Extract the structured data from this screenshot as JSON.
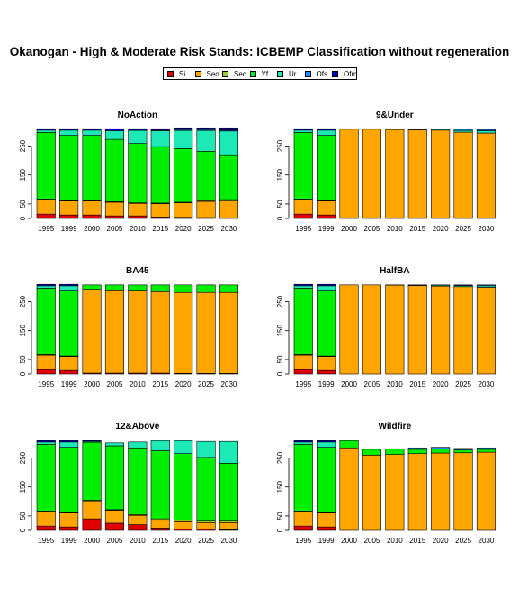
{
  "title": "Okanogan  - High & Moderate Risk Stands: ICBEMP Classification without regeneration",
  "legend": [
    {
      "name": "Si",
      "color": "#e00000"
    },
    {
      "name": "Seo",
      "color": "#ffa500"
    },
    {
      "name": "Sec",
      "color": "#9acd32"
    },
    {
      "name": "Yf",
      "color": "#00ee00"
    },
    {
      "name": "Ur",
      "color": "#1de9b6"
    },
    {
      "name": "Ofs",
      "color": "#1e90ff"
    },
    {
      "name": "Ofm",
      "color": "#0000cc"
    }
  ],
  "chart_data": [
    {
      "type": "bar",
      "stacked": true,
      "title": "NoAction",
      "categories": [
        "1995",
        "1999",
        "2000",
        "2005",
        "2010",
        "2015",
        "2020",
        "2025",
        "2030"
      ],
      "yticks": [
        0,
        50,
        150,
        250
      ],
      "ylim": [
        0,
        320
      ],
      "series": [
        {
          "name": "Si",
          "values": [
            15,
            12,
            12,
            9,
            9,
            5,
            4,
            3,
            0
          ]
        },
        {
          "name": "Seo",
          "values": [
            50,
            48,
            48,
            47,
            43,
            46,
            50,
            56,
            60
          ]
        },
        {
          "name": "Sec",
          "values": [
            2,
            2,
            2,
            2,
            2,
            2,
            2,
            3,
            5
          ]
        },
        {
          "name": "Yf",
          "values": [
            230,
            225,
            225,
            215,
            205,
            195,
            185,
            170,
            155
          ]
        },
        {
          "name": "Ur",
          "values": [
            8,
            18,
            18,
            30,
            45,
            55,
            63,
            72,
            82
          ]
        },
        {
          "name": "Ofs",
          "values": [
            0,
            0,
            0,
            0,
            1,
            2,
            3,
            3,
            3
          ]
        },
        {
          "name": "Ofm",
          "values": [
            5,
            5,
            5,
            7,
            5,
            5,
            6,
            6,
            8
          ]
        }
      ]
    },
    {
      "type": "bar",
      "stacked": true,
      "title": "9&Under",
      "categories": [
        "1995",
        "1999",
        "2000",
        "2005",
        "2010",
        "2015",
        "2020",
        "2025",
        "2030"
      ],
      "yticks": [
        0,
        50,
        150,
        250
      ],
      "ylim": [
        0,
        320
      ],
      "series": [
        {
          "name": "Si",
          "values": [
            15,
            12,
            0,
            0,
            0,
            0,
            0,
            0,
            0
          ]
        },
        {
          "name": "Seo",
          "values": [
            50,
            48,
            308,
            308,
            307,
            306,
            305,
            298,
            295
          ]
        },
        {
          "name": "Sec",
          "values": [
            2,
            2,
            0,
            0,
            0,
            0,
            0,
            0,
            0
          ]
        },
        {
          "name": "Yf",
          "values": [
            230,
            225,
            0,
            0,
            0,
            0,
            0,
            0,
            0
          ]
        },
        {
          "name": "Ur",
          "values": [
            8,
            18,
            0,
            0,
            1,
            2,
            3,
            6,
            8
          ]
        },
        {
          "name": "Ofs",
          "values": [
            0,
            0,
            0,
            0,
            0,
            0,
            0,
            4,
            4
          ]
        },
        {
          "name": "Ofm",
          "values": [
            5,
            5,
            0,
            0,
            0,
            0,
            0,
            0,
            0
          ]
        }
      ]
    },
    {
      "type": "bar",
      "stacked": true,
      "title": "BA45",
      "categories": [
        "1995",
        "1999",
        "2000",
        "2005",
        "2010",
        "2015",
        "2020",
        "2025",
        "2030"
      ],
      "yticks": [
        0,
        50,
        150,
        250
      ],
      "ylim": [
        0,
        320
      ],
      "series": [
        {
          "name": "Si",
          "values": [
            15,
            12,
            3,
            3,
            3,
            3,
            2,
            2,
            2
          ]
        },
        {
          "name": "Seo",
          "values": [
            50,
            48,
            287,
            285,
            284,
            282,
            280,
            280,
            280
          ]
        },
        {
          "name": "Sec",
          "values": [
            2,
            2,
            0,
            0,
            0,
            0,
            0,
            0,
            0
          ]
        },
        {
          "name": "Yf",
          "values": [
            230,
            225,
            18,
            20,
            21,
            23,
            26,
            26,
            26
          ]
        },
        {
          "name": "Ur",
          "values": [
            8,
            18,
            0,
            0,
            0,
            0,
            0,
            0,
            0
          ]
        },
        {
          "name": "Ofs",
          "values": [
            0,
            0,
            0,
            0,
            0,
            0,
            0,
            0,
            0
          ]
        },
        {
          "name": "Ofm",
          "values": [
            5,
            5,
            0,
            0,
            0,
            0,
            0,
            0,
            0
          ]
        }
      ]
    },
    {
      "type": "bar",
      "stacked": true,
      "title": "HalfBA",
      "categories": [
        "1995",
        "1999",
        "2000",
        "2005",
        "2010",
        "2015",
        "2020",
        "2025",
        "2030"
      ],
      "yticks": [
        0,
        50,
        150,
        250
      ],
      "ylim": [
        0,
        320
      ],
      "series": [
        {
          "name": "Si",
          "values": [
            15,
            12,
            0,
            0,
            0,
            0,
            0,
            0,
            0
          ]
        },
        {
          "name": "Seo",
          "values": [
            50,
            48,
            308,
            308,
            307,
            306,
            304,
            302,
            300
          ]
        },
        {
          "name": "Sec",
          "values": [
            2,
            2,
            0,
            0,
            0,
            0,
            0,
            0,
            0
          ]
        },
        {
          "name": "Yf",
          "values": [
            230,
            225,
            0,
            0,
            0,
            0,
            0,
            0,
            0
          ]
        },
        {
          "name": "Ur",
          "values": [
            8,
            18,
            0,
            0,
            0,
            1,
            3,
            4,
            5
          ]
        },
        {
          "name": "Ofs",
          "values": [
            0,
            0,
            0,
            0,
            1,
            1,
            1,
            2,
            3
          ]
        },
        {
          "name": "Ofm",
          "values": [
            5,
            5,
            0,
            0,
            0,
            0,
            0,
            0,
            0
          ]
        }
      ]
    },
    {
      "type": "bar",
      "stacked": true,
      "title": "12&Above",
      "categories": [
        "1995",
        "1999",
        "2000",
        "2005",
        "2010",
        "2015",
        "2020",
        "2025",
        "2030"
      ],
      "yticks": [
        0,
        50,
        150,
        250
      ],
      "ylim": [
        0,
        320
      ],
      "series": [
        {
          "name": "Si",
          "values": [
            15,
            12,
            40,
            25,
            20,
            8,
            5,
            5,
            2
          ]
        },
        {
          "name": "Seo",
          "values": [
            50,
            48,
            62,
            45,
            32,
            27,
            25,
            22,
            25
          ]
        },
        {
          "name": "Sec",
          "values": [
            2,
            2,
            2,
            2,
            3,
            5,
            5,
            5,
            5
          ]
        },
        {
          "name": "Yf",
          "values": [
            230,
            225,
            200,
            220,
            230,
            235,
            230,
            220,
            200
          ]
        },
        {
          "name": "Ur",
          "values": [
            8,
            18,
            3,
            10,
            20,
            35,
            45,
            55,
            75
          ]
        },
        {
          "name": "Ofs",
          "values": [
            0,
            0,
            0,
            0,
            0,
            0,
            0,
            0,
            0
          ]
        },
        {
          "name": "Ofm",
          "values": [
            5,
            5,
            3,
            0,
            0,
            0,
            0,
            0,
            0
          ]
        }
      ]
    },
    {
      "type": "bar",
      "stacked": true,
      "title": "Wildfire",
      "categories": [
        "1995",
        "1999",
        "2000",
        "2005",
        "2010",
        "2015",
        "2020",
        "2025",
        "2030"
      ],
      "yticks": [
        0,
        50,
        150,
        250
      ],
      "ylim": [
        0,
        320
      ],
      "series": [
        {
          "name": "Si",
          "values": [
            15,
            12,
            0,
            0,
            0,
            0,
            0,
            0,
            0
          ]
        },
        {
          "name": "Seo",
          "values": [
            50,
            48,
            285,
            260,
            262,
            265,
            267,
            268,
            270
          ]
        },
        {
          "name": "Sec",
          "values": [
            2,
            2,
            0,
            0,
            0,
            0,
            0,
            0,
            0
          ]
        },
        {
          "name": "Yf",
          "values": [
            230,
            225,
            25,
            20,
            20,
            15,
            15,
            10,
            10
          ]
        },
        {
          "name": "Ur",
          "values": [
            8,
            18,
            0,
            0,
            0,
            0,
            0,
            0,
            0
          ]
        },
        {
          "name": "Ofs",
          "values": [
            0,
            0,
            0,
            0,
            0,
            5,
            5,
            5,
            5
          ]
        },
        {
          "name": "Ofm",
          "values": [
            5,
            5,
            0,
            0,
            0,
            0,
            0,
            0,
            0
          ]
        }
      ]
    }
  ]
}
